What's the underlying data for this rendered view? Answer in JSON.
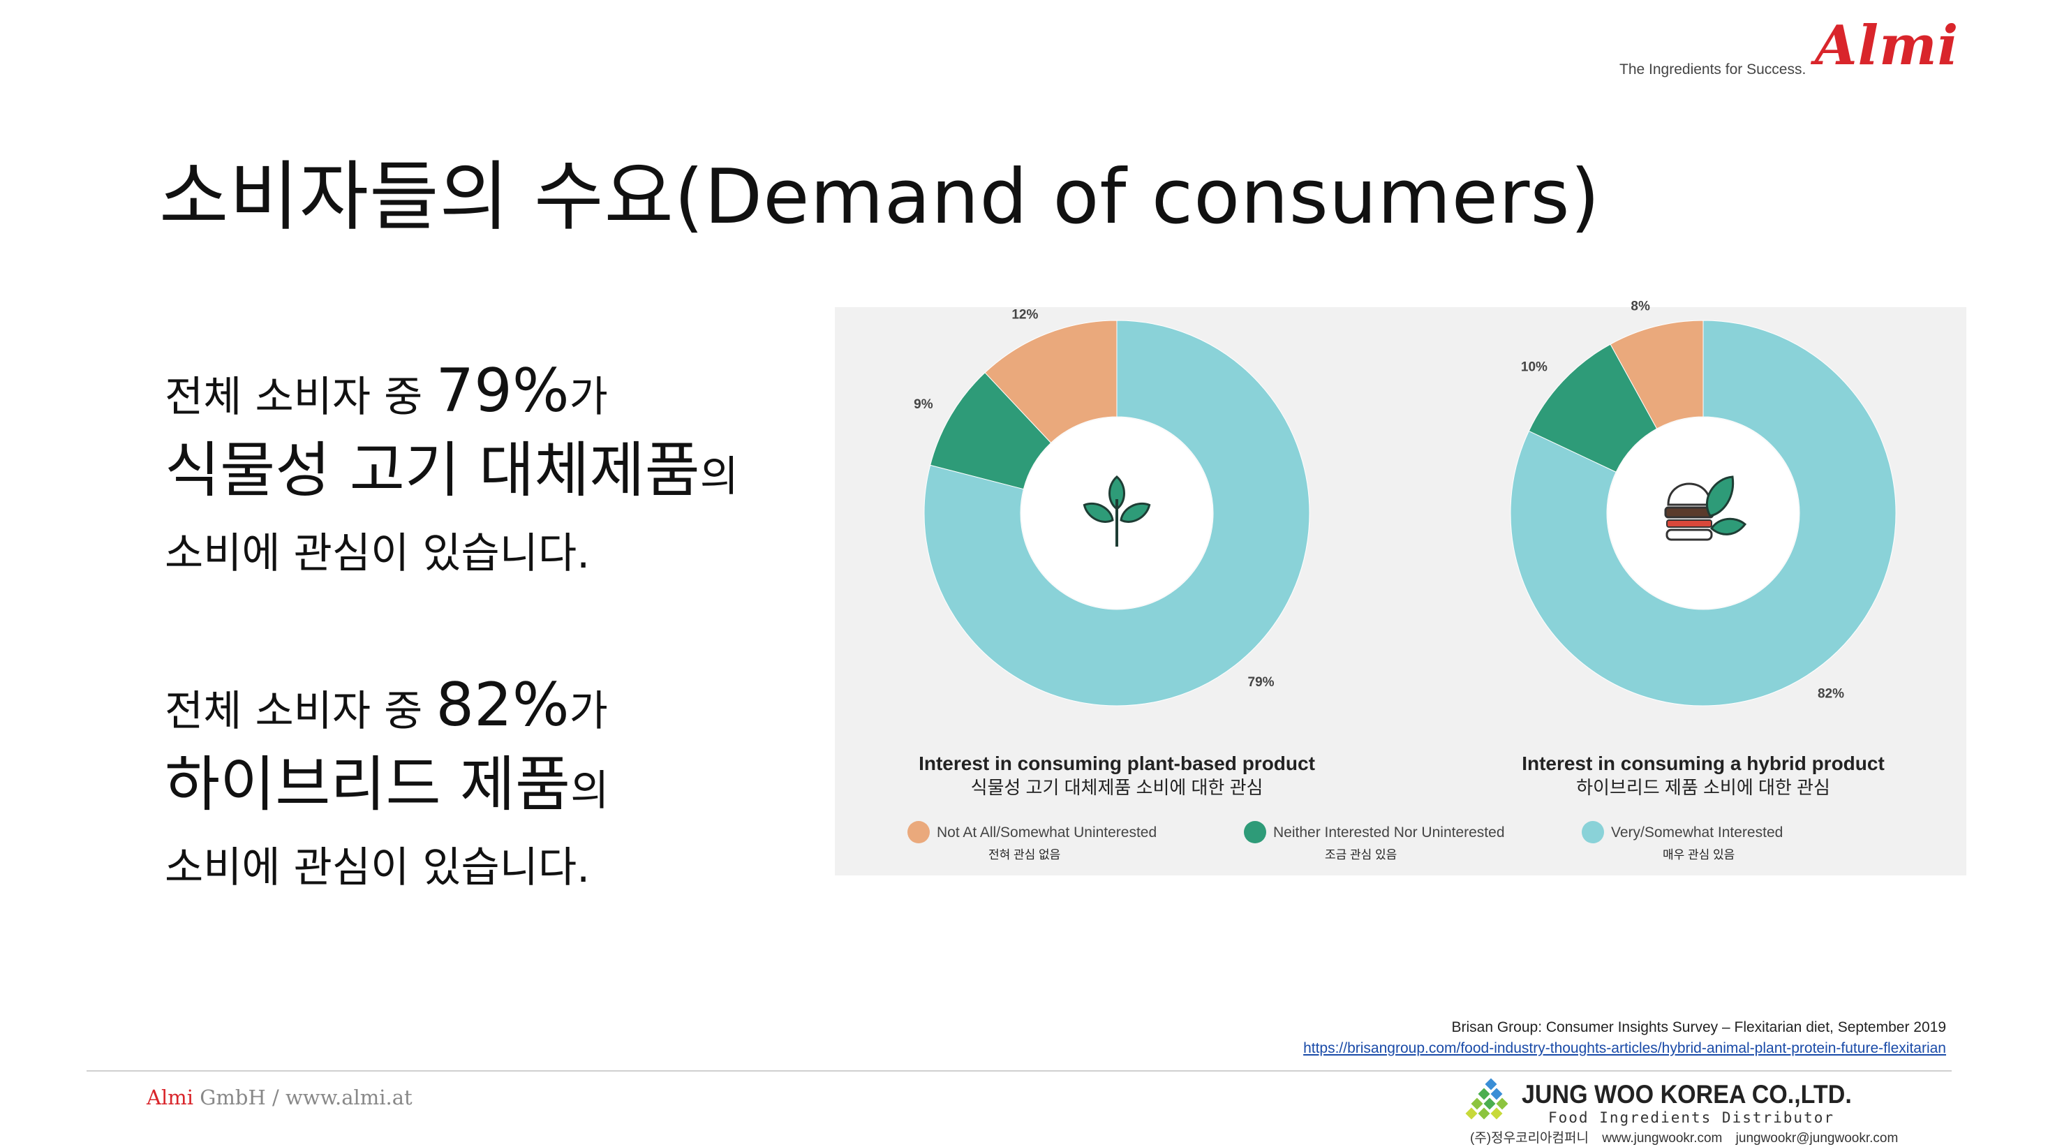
{
  "header": {
    "tagline": "The Ingredients for Success.",
    "logo_text": "Almi"
  },
  "title": "소비자들의 수요(Demand of consumers)",
  "stats": [
    {
      "pre": "전체 소비자 중 ",
      "pct": "79%",
      "post": "가",
      "product": "식물성 고기 대체제품",
      "product_suffix": "의",
      "line3": "소비에 관심이 있습니다."
    },
    {
      "pre": "전체 소비자 중 ",
      "pct": "82%",
      "post": "가",
      "product": "하이브리드 제품",
      "product_suffix": "의",
      "line3": "소비에 관심이 있습니다."
    }
  ],
  "chart_data": [
    {
      "type": "pie",
      "title": "Interest in consuming plant-based product",
      "subtitle": "식물성 고기 대체제품 소비에 대한 관심",
      "icon": "leaf-sprout-icon",
      "slices": [
        {
          "label": "Not At All/Somewhat Uninterested",
          "value": 12,
          "value_label": "12%"
        },
        {
          "label": "Neither Interested Nor Uninterested",
          "value": 9,
          "value_label": "9%"
        },
        {
          "label": "Very/Somewhat Interested",
          "value": 79,
          "value_label": "79%"
        }
      ]
    },
    {
      "type": "pie",
      "title": "Interest in consuming a hybrid product",
      "subtitle": "하이브리드 제품 소비에 대한 관심",
      "icon": "burger-leaf-icon",
      "slices": [
        {
          "label": "Not At All/Somewhat Uninterested",
          "value": 8,
          "value_label": "8%"
        },
        {
          "label": "Neither Interested Nor Uninterested",
          "value": 10,
          "value_label": "10%"
        },
        {
          "label": "Very/Somewhat Interested",
          "value": 82,
          "value_label": "82%"
        }
      ]
    }
  ],
  "legend": [
    {
      "label": "Not At All/Somewhat Uninterested",
      "sublabel": "전혀 관심 없음",
      "color": "#eaa97c"
    },
    {
      "label": "Neither Interested Nor Uninterested",
      "sublabel": "조금 관심 있음",
      "color": "#2e9b78"
    },
    {
      "label": "Very/Somewhat Interested",
      "sublabel": "매우 관심 있음",
      "color": "#8ad2d8"
    }
  ],
  "citation": {
    "text": "Brisan Group: Consumer Insights Survey – Flexitarian diet, September 2019",
    "link": "https://brisangroup.com/food-industry-thoughts-articles/hybrid-animal-plant-protein-future-flexitarian"
  },
  "footer": {
    "brand": "Almi",
    "rest": " GmbH / www.almi.at",
    "company": "JUNG WOO KOREA CO.,LTD.",
    "company_sub": "Food Ingredients Distributor",
    "contact": "(주)정우코리아컴퍼니 www.jungwookr.com jungwookr@jungwookr.com"
  }
}
